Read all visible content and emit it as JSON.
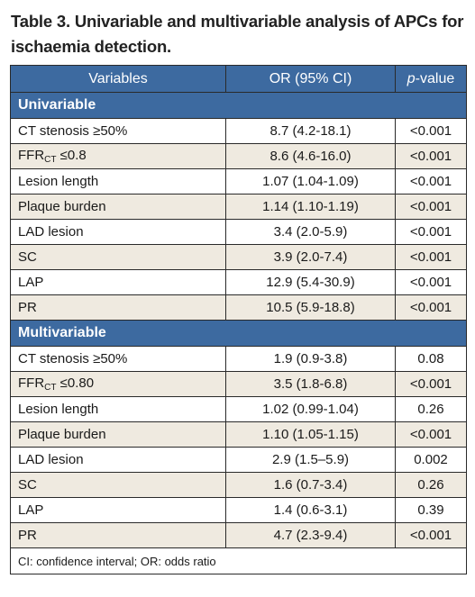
{
  "title": "Table 3. Univariable and multivariable analysis of APCs for ischaemia detection.",
  "headers": {
    "variables": "Variables",
    "or": "OR (95% CI)",
    "p_italic": "p",
    "p_rest": "-value"
  },
  "sections": [
    {
      "label": "Univariable",
      "rows": [
        {
          "variable": "CT stenosis ≥50%",
          "or": "8.7 (4.2-18.1)",
          "p": "<0.001"
        },
        {
          "var_main": "FFR",
          "var_sub": "CT",
          "var_tail": " ≤0.8",
          "or": "8.6 (4.6-16.0)",
          "p": "<0.001"
        },
        {
          "variable": "Lesion length",
          "or": "1.07 (1.04-1.09)",
          "p": "<0.001"
        },
        {
          "variable": "Plaque burden",
          "or": "1.14 (1.10-1.19)",
          "p": "<0.001"
        },
        {
          "variable": "LAD lesion",
          "or": "3.4 (2.0-5.9)",
          "p": "<0.001"
        },
        {
          "variable": "SC",
          "or": "3.9 (2.0-7.4)",
          "p": "<0.001"
        },
        {
          "variable": "LAP",
          "or": "12.9 (5.4-30.9)",
          "p": "<0.001"
        },
        {
          "variable": "PR",
          "or": "10.5 (5.9-18.8)",
          "p": "<0.001"
        }
      ]
    },
    {
      "label": "Multivariable",
      "rows": [
        {
          "variable": "CT stenosis ≥50%",
          "or": "1.9 (0.9-3.8)",
          "p": "0.08"
        },
        {
          "var_main": "FFR",
          "var_sub": "CT",
          "var_tail": " ≤0.80",
          "or": "3.5 (1.8-6.8)",
          "p": "<0.001"
        },
        {
          "variable": "Lesion length",
          "or": "1.02 (0.99-1.04)",
          "p": "0.26"
        },
        {
          "variable": "Plaque burden",
          "or": "1.10 (1.05-1.15)",
          "p": "<0.001"
        },
        {
          "variable": "LAD lesion",
          "or": "2.9 (1.5–5.9)",
          "p": "0.002"
        },
        {
          "variable": "SC",
          "or": "1.6 (0.7-3.4)",
          "p": "0.26"
        },
        {
          "variable": "LAP",
          "or": "1.4 (0.6-3.1)",
          "p": "0.39"
        },
        {
          "variable": "PR",
          "or": "4.7 (2.3-9.4)",
          "p": "<0.001"
        }
      ]
    }
  ],
  "footnote": "CI: confidence interval; OR: odds ratio",
  "colors": {
    "header_blue": "#3d6aa0",
    "row_alt": "#efeae0"
  }
}
